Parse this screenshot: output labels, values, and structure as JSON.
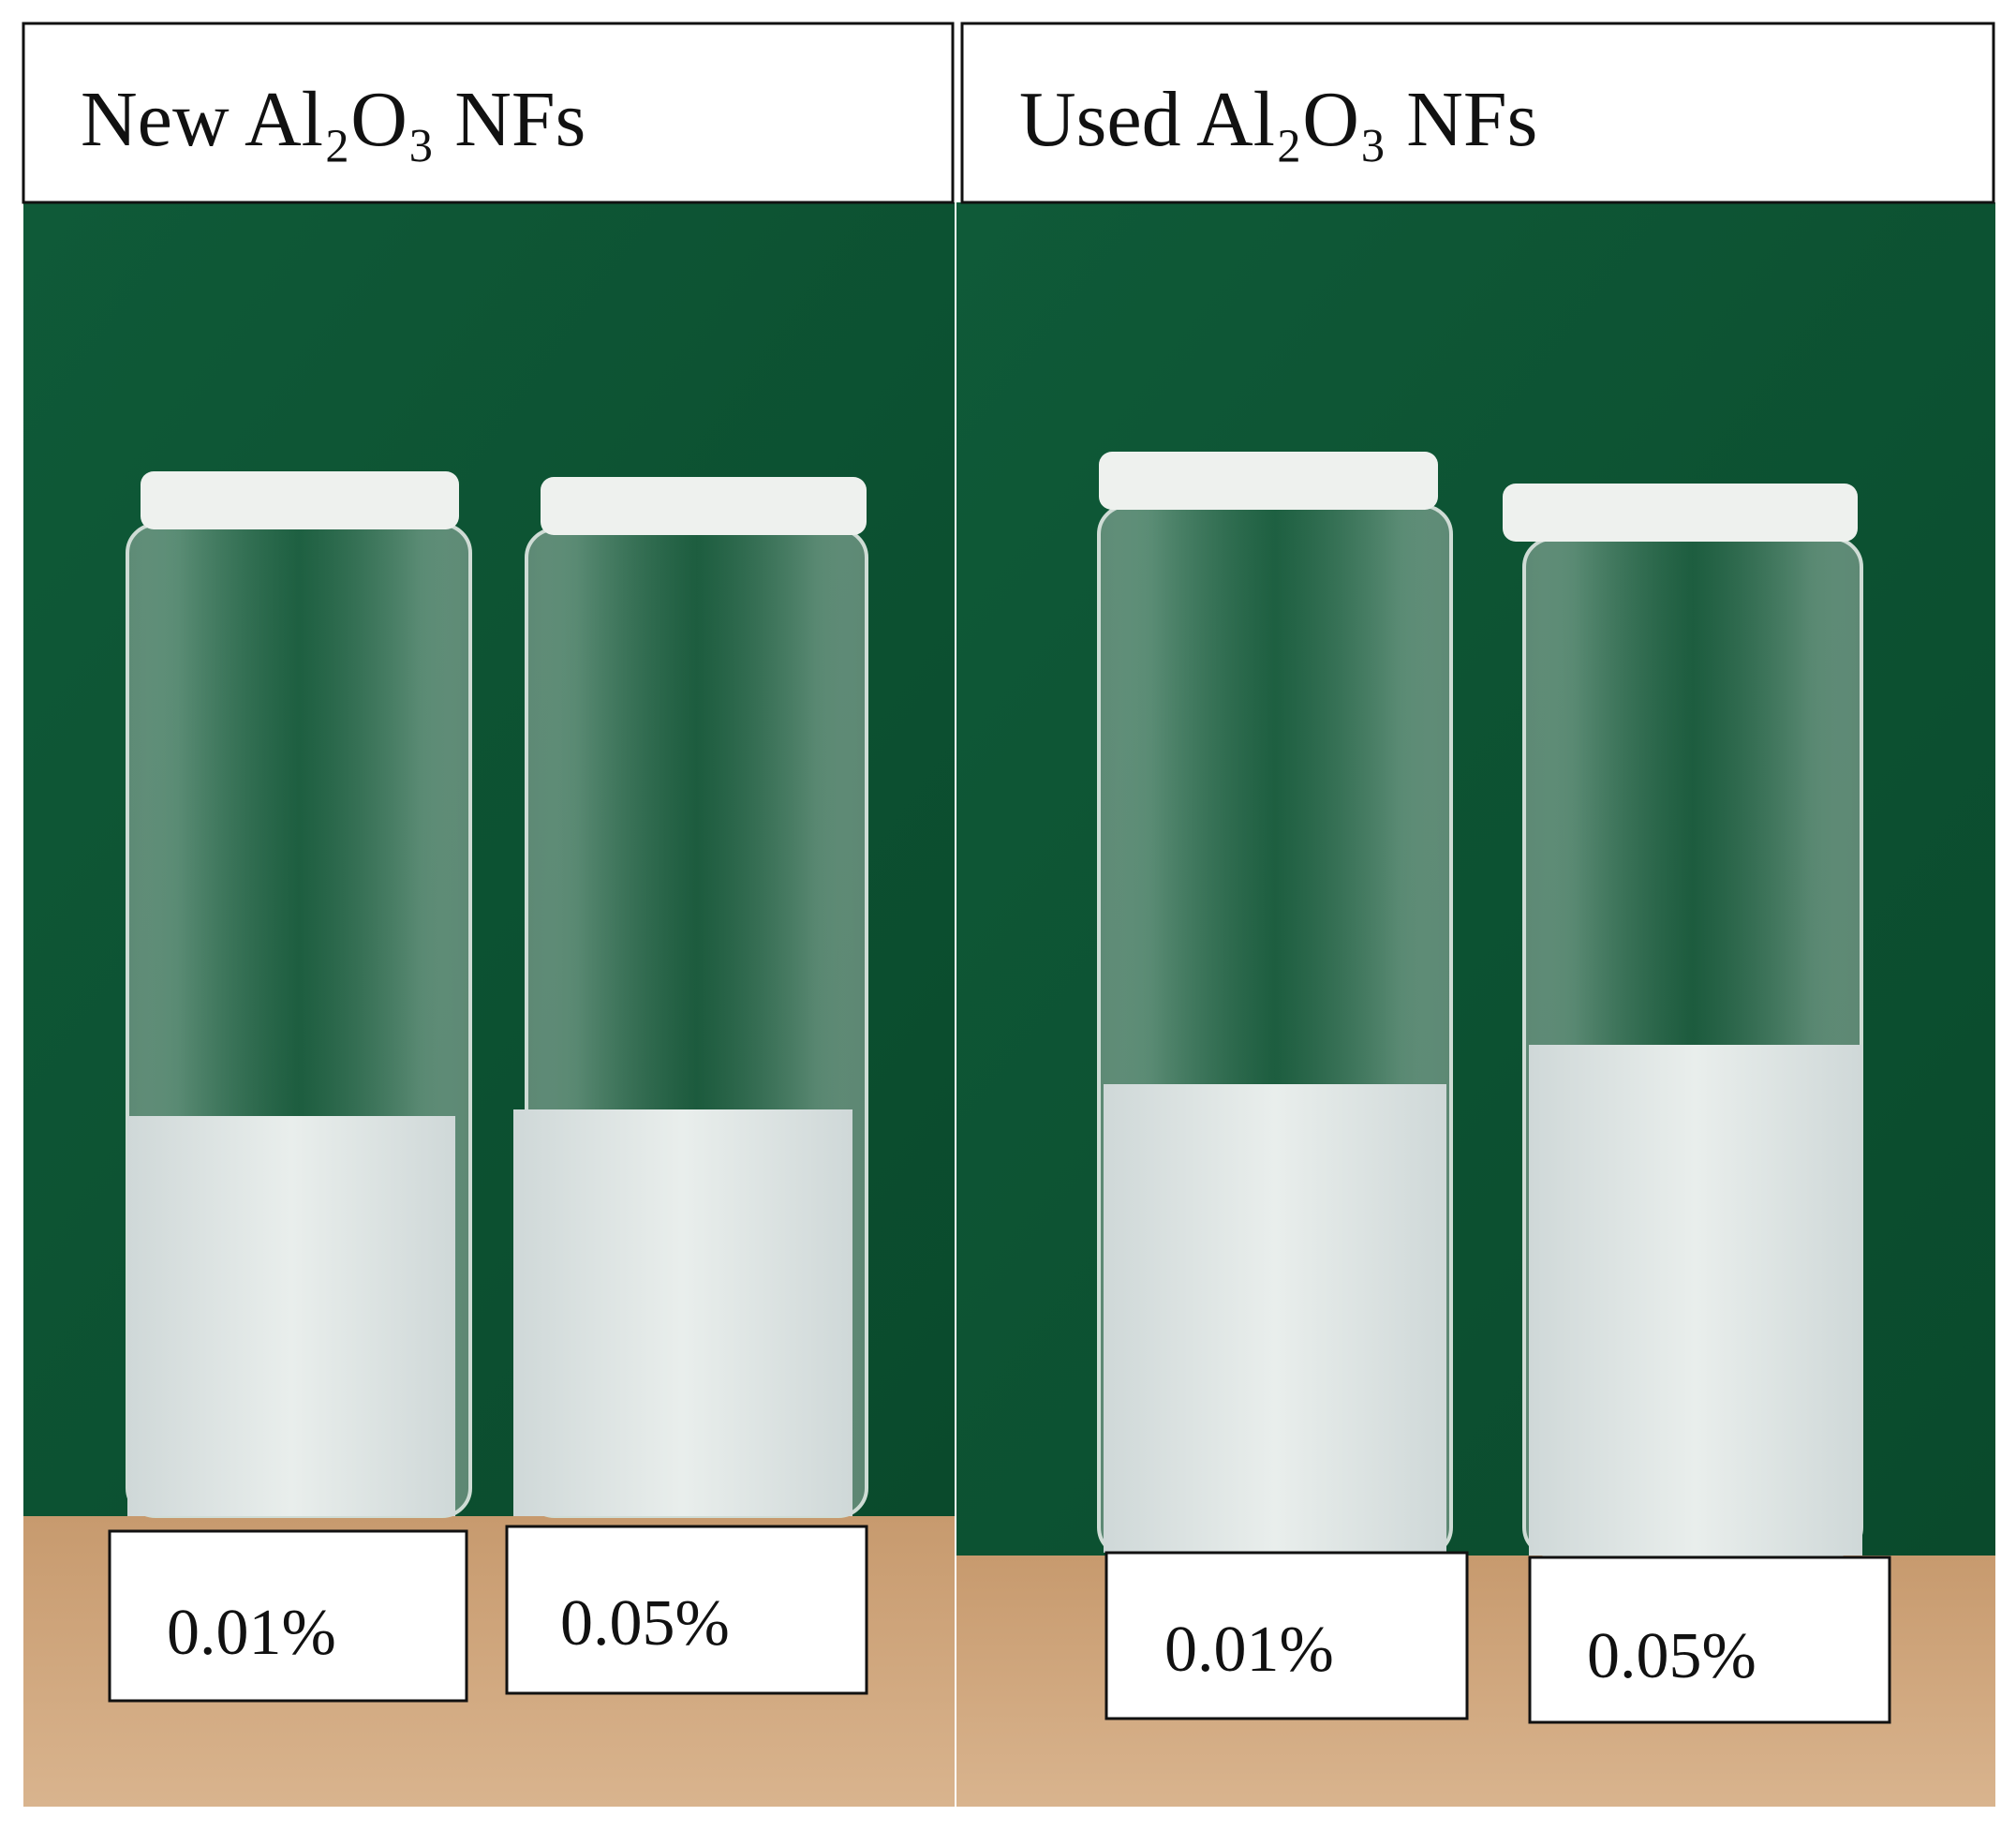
{
  "panels": [
    {
      "title": "New Al₂O₃ NFs",
      "labels": [
        "0.01%",
        "0.05%"
      ]
    },
    {
      "title": "Used Al₂O₃ NFs",
      "labels": [
        "0.01%",
        "0.05%"
      ]
    }
  ]
}
